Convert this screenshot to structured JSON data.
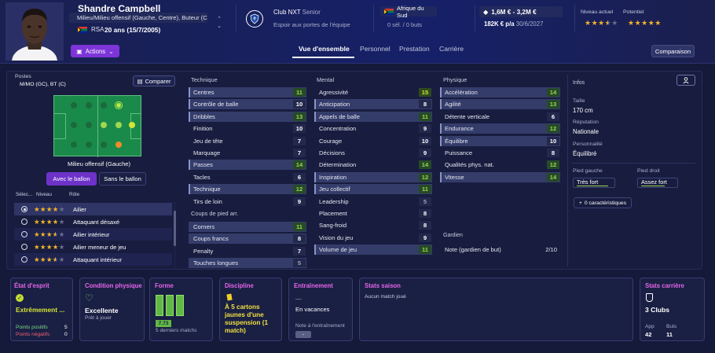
{
  "player": {
    "name": "Shandre Campbell",
    "positions": "Milieu/Milieu offensif (Gauche, Centre), Buteur (C...",
    "nationality_code": "RSA",
    "age": "20 ans (15/7/2005)"
  },
  "club": {
    "name": "Club NXT",
    "level": "Senior",
    "status": "Espoir aux portes de l'équipe"
  },
  "nation": {
    "name": "Afrique du Sud",
    "caps": "0 sél. / 0 buts"
  },
  "contract": {
    "value": "1,6M € - 3,2M €",
    "wage": "182K € p/a",
    "expiry": "30/6/2027"
  },
  "ability": {
    "current_label": "Niveau actuel",
    "current_stars": 3.5,
    "potential_label": "Potentiel",
    "potential_stars": 5
  },
  "actions_label": "Actions",
  "tabs": [
    "Vue d'ensemble",
    "Personnel",
    "Prestation",
    "Carrière"
  ],
  "comparison_label": "Comparaison",
  "positions_panel": {
    "title": "Postes",
    "short": "M/MO (GC), BT (C)",
    "compare_label": "Comparer",
    "pitch_caption": "Milieu offensif (Gauche)",
    "with_ball": "Avec le ballon",
    "without_ball": "Sans le ballon",
    "col_select": "Sélec...",
    "col_level": "Niveau",
    "col_role": "Rôle",
    "roles": [
      {
        "stars": 4,
        "name": "Ailier",
        "selected": true
      },
      {
        "stars": 4,
        "name": "Attaquant désaxé",
        "selected": false
      },
      {
        "stars": 3.5,
        "name": "Ailier intérieur",
        "selected": false
      },
      {
        "stars": 4,
        "name": "Ailier meneur de jeu",
        "selected": false
      },
      {
        "stars": 3.5,
        "name": "Attaquant intérieur",
        "selected": false
      }
    ]
  },
  "technique": {
    "title": "Technique",
    "attrs": [
      {
        "name": "Centres",
        "value": "11"
      },
      {
        "name": "Contrôle de balle",
        "value": "10"
      },
      {
        "name": "Dribbles",
        "value": "13"
      },
      {
        "name": "Finition",
        "value": "10"
      },
      {
        "name": "Jeu de tête",
        "value": "7"
      },
      {
        "name": "Marquage",
        "value": "7"
      },
      {
        "name": "Passes",
        "value": "14"
      },
      {
        "name": "Tacles",
        "value": "6"
      },
      {
        "name": "Technique",
        "value": "12"
      },
      {
        "name": "Tirs de loin",
        "value": "9"
      }
    ]
  },
  "set_pieces": {
    "title": "Coups de pied arr.",
    "attrs": [
      {
        "name": "Corners",
        "value": "11"
      },
      {
        "name": "Coups francs",
        "value": "8"
      },
      {
        "name": "Penalty",
        "value": "7"
      },
      {
        "name": "Touches longues",
        "value": "5"
      }
    ]
  },
  "mental": {
    "title": "Mental",
    "attrs": [
      {
        "name": "Agressivité",
        "value": "15"
      },
      {
        "name": "Anticipation",
        "value": "8"
      },
      {
        "name": "Appels de balle",
        "value": "11"
      },
      {
        "name": "Concentration",
        "value": "9"
      },
      {
        "name": "Courage",
        "value": "10"
      },
      {
        "name": "Décisions",
        "value": "9"
      },
      {
        "name": "Détermination",
        "value": "14"
      },
      {
        "name": "Inspiration",
        "value": "12"
      },
      {
        "name": "Jeu collectif",
        "value": "11"
      },
      {
        "name": "Leadership",
        "value": "5"
      },
      {
        "name": "Placement",
        "value": "8"
      },
      {
        "name": "Sang-froid",
        "value": "8"
      },
      {
        "name": "Vision du jeu",
        "value": "9"
      },
      {
        "name": "Volume de jeu",
        "value": "11"
      }
    ]
  },
  "physique": {
    "title": "Physique",
    "attrs": [
      {
        "name": "Accélération",
        "value": "14"
      },
      {
        "name": "Agilité",
        "value": "13"
      },
      {
        "name": "Détente verticale",
        "value": "6"
      },
      {
        "name": "Endurance",
        "value": "12"
      },
      {
        "name": "Équilibre",
        "value": "10"
      },
      {
        "name": "Puissance",
        "value": "8"
      },
      {
        "name": "Qualités phys. nat.",
        "value": "12"
      },
      {
        "name": "Vitesse",
        "value": "14"
      }
    ]
  },
  "goalkeeper": {
    "title": "Gardien",
    "label": "Note (gardien de but)",
    "value": "2/10"
  },
  "infos": {
    "title": "Infos",
    "height_label": "Taille",
    "height": "170 cm",
    "reputation_label": "Réputation",
    "reputation": "Nationale",
    "personality_label": "Personnalité",
    "personality": "Équilibré",
    "left_foot_label": "Pied gauche",
    "left_foot": "Très fort",
    "right_foot_label": "Pied droit",
    "right_foot": "Assez fort",
    "traits": "0 caractéristiques"
  },
  "cards": {
    "morale": {
      "title": "État d'esprit",
      "value": "Extrêmement ...",
      "pos_label": "Points positifs",
      "pos": "5",
      "neg_label": "Points négatifs",
      "neg": "0"
    },
    "condition": {
      "title": "Condition physique",
      "value": "Excellente",
      "sub": "Prêt à jouer"
    },
    "form": {
      "title": "Forme",
      "rating": "7.73",
      "sub": "5 derniers matchs"
    },
    "discipline": {
      "title": "Discipline",
      "value": "À 5 cartons jaunes d'une suspension (1 match)"
    },
    "training": {
      "title": "Entraînement",
      "dash": "—",
      "value": "En vacances",
      "note_label": "Note à l'entraînement",
      "note": "-"
    },
    "season": {
      "title": "Stats saison",
      "value": "Aucun match joué"
    },
    "career": {
      "title": "Stats carrière",
      "clubs": "3 Clubs",
      "app_label": "App",
      "app": "42",
      "goals_label": "Buts",
      "goals": "11"
    }
  },
  "colors": {
    "accent": "#7d34d8",
    "card_title": "#e466e8",
    "high": "#d4e535",
    "good": "#9ad450"
  }
}
